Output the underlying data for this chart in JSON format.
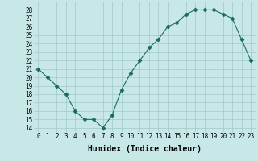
{
  "x": [
    0,
    1,
    2,
    3,
    4,
    5,
    6,
    7,
    8,
    9,
    10,
    11,
    12,
    13,
    14,
    15,
    16,
    17,
    18,
    19,
    20,
    21,
    22,
    23
  ],
  "y": [
    21,
    20,
    19,
    18,
    16,
    15,
    15,
    14,
    15.5,
    18.5,
    20.5,
    22,
    23.5,
    24.5,
    26,
    26.5,
    27.5,
    28,
    28,
    28,
    27.5,
    27,
    24.5,
    22
  ],
  "line_color": "#1a6b5e",
  "marker": "D",
  "marker_size": 2.5,
  "background_color": "#c8e8e8",
  "grid_color": "#a0c8c8",
  "xlabel": "Humidex (Indice chaleur)",
  "xlim": [
    -0.5,
    23.5
  ],
  "ylim": [
    13.5,
    29
  ],
  "yticks": [
    14,
    15,
    16,
    17,
    18,
    19,
    20,
    21,
    22,
    23,
    24,
    25,
    26,
    27,
    28
  ],
  "xticks": [
    0,
    1,
    2,
    3,
    4,
    5,
    6,
    7,
    8,
    9,
    10,
    11,
    12,
    13,
    14,
    15,
    16,
    17,
    18,
    19,
    20,
    21,
    22,
    23
  ],
  "tick_fontsize": 5.5,
  "label_fontsize": 7
}
